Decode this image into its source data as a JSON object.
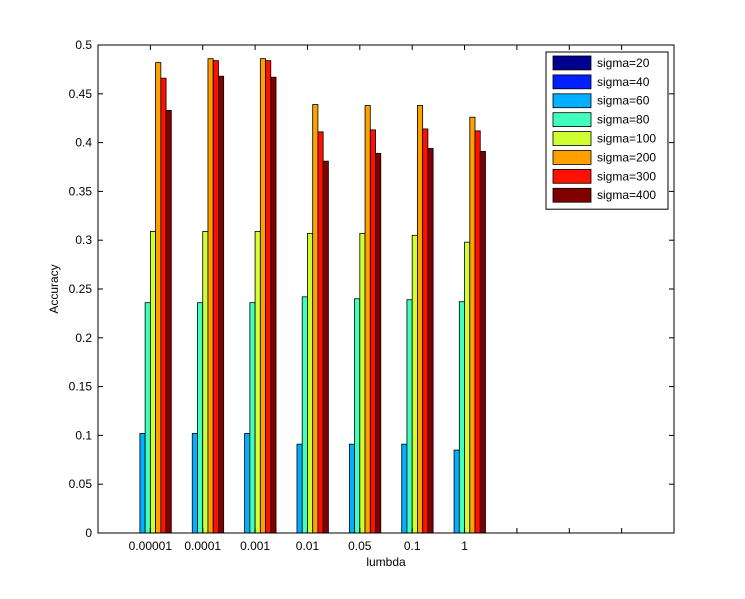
{
  "chart_data": {
    "type": "bar",
    "title": "",
    "xlabel": "lumbda",
    "ylabel": "Accuracy",
    "ylim": [
      0,
      0.5
    ],
    "yticks": [
      "0",
      "0.05",
      "0.1",
      "0.15",
      "0.2",
      "0.25",
      "0.3",
      "0.35",
      "0.4",
      "0.45",
      "0.5"
    ],
    "categories": [
      "0.00001",
      "0.0001",
      "0.001",
      "0.01",
      "0.05",
      "0.1",
      "1"
    ],
    "x_slots": 10,
    "legend_position": "top-right",
    "grid": false,
    "series": [
      {
        "name": "sigma=20",
        "color": "#00008f",
        "values": [
          0,
          0,
          0,
          0,
          0,
          0,
          0
        ]
      },
      {
        "name": "sigma=40",
        "color": "#0020ff",
        "values": [
          0,
          0,
          0,
          0,
          0,
          0,
          0
        ]
      },
      {
        "name": "sigma=60",
        "color": "#00afff",
        "values": [
          0.102,
          0.102,
          0.102,
          0.091,
          0.091,
          0.091,
          0.085
        ]
      },
      {
        "name": "sigma=80",
        "color": "#40ffbf",
        "values": [
          0.236,
          0.236,
          0.236,
          0.242,
          0.24,
          0.239,
          0.237
        ]
      },
      {
        "name": "sigma=100",
        "color": "#cfff30",
        "values": [
          0.309,
          0.309,
          0.309,
          0.307,
          0.307,
          0.305,
          0.298
        ]
      },
      {
        "name": "sigma=200",
        "color": "#ff9f00",
        "values": [
          0.482,
          0.486,
          0.486,
          0.439,
          0.438,
          0.438,
          0.426
        ]
      },
      {
        "name": "sigma=300",
        "color": "#ff1000",
        "values": [
          0.466,
          0.484,
          0.484,
          0.411,
          0.413,
          0.414,
          0.412
        ]
      },
      {
        "name": "sigma=400",
        "color": "#800000",
        "values": [
          0.433,
          0.468,
          0.467,
          0.381,
          0.389,
          0.394,
          0.391
        ]
      }
    ]
  }
}
